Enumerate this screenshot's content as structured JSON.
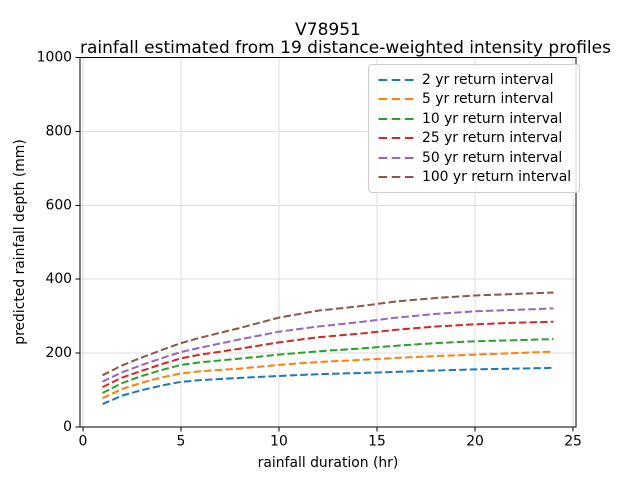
{
  "chart_data": {
    "type": "line",
    "title": "V78951",
    "subtitle": "rainfall estimated from 19 distance-weighted intensity profiles",
    "xlabel": "rainfall duration (hr)",
    "ylabel": "predicted rainfall depth (mm)",
    "xlim": [
      -0.15,
      25.15
    ],
    "ylim": [
      0,
      1000
    ],
    "xticks": [
      0,
      5,
      10,
      15,
      20,
      25
    ],
    "yticks": [
      0,
      200,
      400,
      600,
      800,
      1000
    ],
    "grid": true,
    "legend_position": "upper right",
    "line_style": "dashed",
    "x": [
      1,
      2,
      3,
      4,
      5,
      6,
      8,
      10,
      12,
      14,
      16,
      18,
      20,
      22,
      24
    ],
    "series": [
      {
        "name": "2 yr return interval",
        "color": "#1f77b4",
        "values": [
          62,
          85,
          100,
          112,
          122,
          127,
          133,
          138,
          143,
          146,
          149,
          153,
          156,
          158,
          160
        ]
      },
      {
        "name": "5 yr return interval",
        "color": "#ff7f0e",
        "values": [
          78,
          103,
          120,
          134,
          145,
          151,
          158,
          168,
          176,
          181,
          187,
          192,
          196,
          200,
          204
        ]
      },
      {
        "name": "10 yr return interval",
        "color": "#2ca02c",
        "values": [
          92,
          119,
          138,
          154,
          168,
          175,
          185,
          196,
          205,
          212,
          220,
          227,
          232,
          235,
          238
        ]
      },
      {
        "name": "25 yr return interval",
        "color": "#d62728",
        "values": [
          108,
          134,
          152,
          170,
          186,
          196,
          212,
          229,
          243,
          252,
          263,
          272,
          278,
          282,
          285
        ]
      },
      {
        "name": "50 yr return interval",
        "color": "#9467bd",
        "values": [
          123,
          148,
          168,
          186,
          203,
          215,
          237,
          258,
          272,
          283,
          296,
          306,
          313,
          317,
          321
        ]
      },
      {
        "name": "100 yr return interval",
        "color": "#8c564b",
        "values": [
          140,
          167,
          188,
          208,
          227,
          242,
          268,
          296,
          315,
          326,
          340,
          349,
          356,
          360,
          364
        ]
      }
    ],
    "colors": {
      "background": "#ffffff",
      "grid": "#dddddd",
      "spine": "#000000",
      "text": "#000000",
      "legend_border": "#cccccc"
    }
  }
}
